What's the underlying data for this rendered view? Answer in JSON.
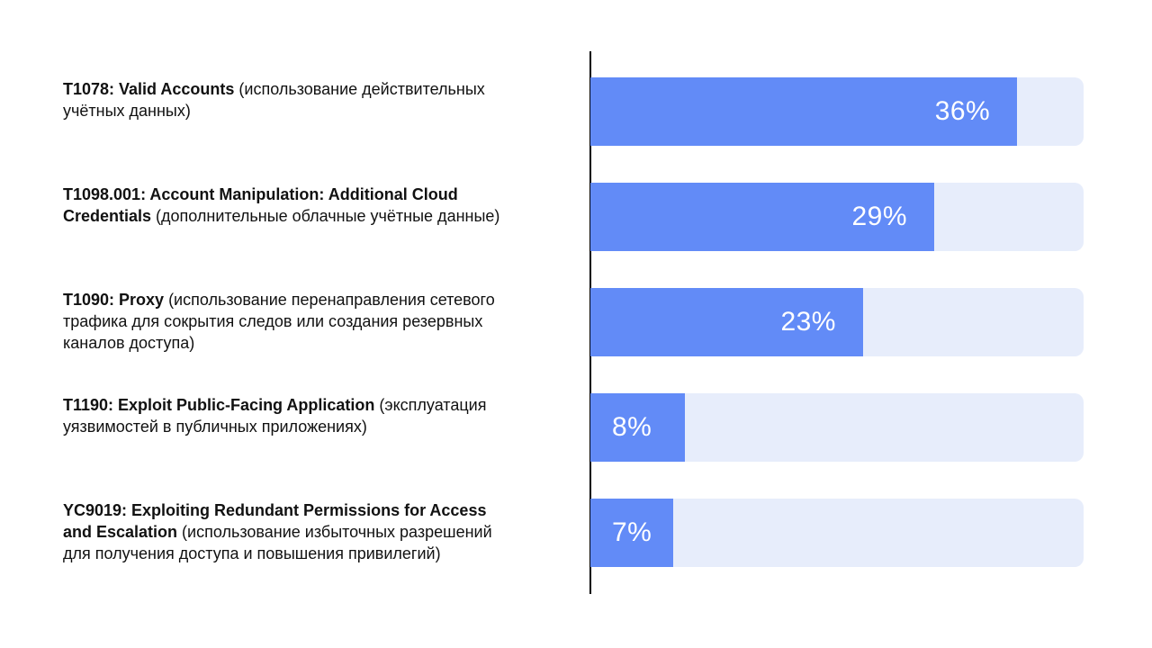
{
  "chart": {
    "background_color": "#ffffff",
    "axis_color": "#000000",
    "bar_fill_color": "#628bf7",
    "bar_track_color": "#e7edfb",
    "value_text_color": "#ffffff",
    "label_text_color": "#111111",
    "axis_max_percent": 41.6
  },
  "chart_data": {
    "type": "bar",
    "orientation": "horizontal",
    "title": "",
    "xlabel": "",
    "ylabel": "",
    "unit": "%",
    "xlim": [
      0,
      41.6
    ],
    "grid": false,
    "legend": false,
    "categories": [
      "T1078: Valid Accounts (использование действительных учётных данных)",
      "T1098.001: Account Manipulation: Additional Cloud Credentials (дополнительные облачные учётные данные)",
      "T1090: Proxy (использование перенаправления сетевого трафика для сокрытия следов или создания резервных каналов доступа)",
      "T1190: Exploit Public-Facing Application (эксплуатация уязвимостей в публичных приложениях)",
      "YC9019: Exploiting Redundant Permissions for Access and Escalation (использование избыточных разрешений для получения доступа и повышения привилегий)"
    ],
    "values": [
      36,
      29,
      23,
      8,
      7
    ],
    "value_labels": [
      "36%",
      "29%",
      "23%",
      "8%",
      "7%"
    ]
  },
  "rows": [
    {
      "value": 36,
      "value_label": "36%",
      "value_align": "right",
      "label_lines": [
        [
          {
            "text": "T1078: Valid Accounts",
            "bold": true
          },
          {
            "text": " (использование действительных",
            "bold": false
          }
        ],
        [
          {
            "text": "учётных данных)",
            "bold": false
          }
        ]
      ]
    },
    {
      "value": 29,
      "value_label": "29%",
      "value_align": "right",
      "label_lines": [
        [
          {
            "text": "T1098.001: Account Manipulation: Additional Cloud",
            "bold": true
          }
        ],
        [
          {
            "text": "Credentials",
            "bold": true
          },
          {
            "text": " (дополнительные облачные учётные данные)",
            "bold": false
          }
        ]
      ]
    },
    {
      "value": 23,
      "value_label": "23%",
      "value_align": "right",
      "label_lines": [
        [
          {
            "text": "T1090: Proxy",
            "bold": true
          },
          {
            "text": " (использование перенаправления сетевого",
            "bold": false
          }
        ],
        [
          {
            "text": "трафика для сокрытия следов или создания резервных",
            "bold": false
          }
        ],
        [
          {
            "text": "каналов доступа)",
            "bold": false
          }
        ]
      ]
    },
    {
      "value": 8,
      "value_label": "8%",
      "value_align": "left",
      "label_lines": [
        [
          {
            "text": "T1190: Exploit Public-Facing Application",
            "bold": true
          },
          {
            "text": " (эксплуатация",
            "bold": false
          }
        ],
        [
          {
            "text": "уязвимостей в публичных приложениях)",
            "bold": false
          }
        ]
      ]
    },
    {
      "value": 7,
      "value_label": "7%",
      "value_align": "left",
      "label_lines": [
        [
          {
            "text": "YC9019: Exploiting Redundant Permissions for Access",
            "bold": true
          }
        ],
        [
          {
            "text": "and Escalation",
            "bold": true
          },
          {
            "text": " (использование избыточных разрешений",
            "bold": false
          }
        ],
        [
          {
            "text": "для получения доступа и повышения привилегий)",
            "bold": false
          }
        ]
      ]
    }
  ]
}
